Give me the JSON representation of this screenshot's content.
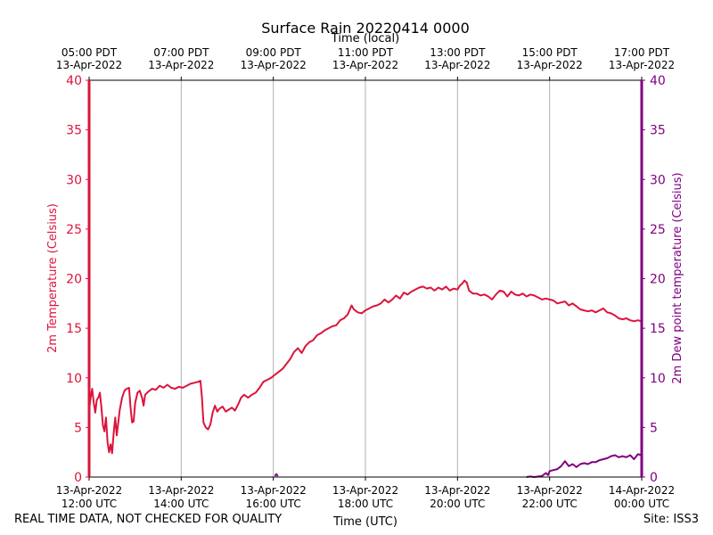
{
  "footer": {
    "left_note": "REAL TIME DATA, NOT CHECKED FOR QUALITY",
    "site": "Site: ISS3"
  },
  "colors": {
    "temperature": "#dc143c",
    "dewpoint": "#800080",
    "grid": "#b0b0b0",
    "axis": "#000000"
  },
  "chart_data": {
    "type": "line",
    "title": "Surface Rain 20220414 0000",
    "xlabel": "Time (UTC)",
    "x2label": "Time (local)",
    "ylabel": "2m Temperature (Celsius)",
    "y2label": "2m Dew point temperature (Celsius)",
    "xlim": [
      "2022-04-13T12:00Z",
      "2022-04-14T00:00Z"
    ],
    "ylim": [
      0,
      40
    ],
    "y2lim": [
      0,
      40
    ],
    "yticks": [
      0,
      5,
      10,
      15,
      20,
      25,
      30,
      35,
      40
    ],
    "grid": "vertical",
    "x_ticks_utc": [
      {
        "t": "2022-04-13T12:00Z",
        "line1": "13-Apr-2022",
        "line2": "12:00 UTC"
      },
      {
        "t": "2022-04-13T14:00Z",
        "line1": "13-Apr-2022",
        "line2": "14:00 UTC"
      },
      {
        "t": "2022-04-13T16:00Z",
        "line1": "13-Apr-2022",
        "line2": "16:00 UTC"
      },
      {
        "t": "2022-04-13T18:00Z",
        "line1": "13-Apr-2022",
        "line2": "18:00 UTC"
      },
      {
        "t": "2022-04-13T20:00Z",
        "line1": "13-Apr-2022",
        "line2": "20:00 UTC"
      },
      {
        "t": "2022-04-13T22:00Z",
        "line1": "13-Apr-2022",
        "line2": "22:00 UTC"
      },
      {
        "t": "2022-04-14T00:00Z",
        "line1": "14-Apr-2022",
        "line2": "00:00 UTC"
      }
    ],
    "x_ticks_local": [
      {
        "t": "2022-04-13T12:00Z",
        "line1": "05:00 PDT",
        "line2": "13-Apr-2022"
      },
      {
        "t": "2022-04-13T14:00Z",
        "line1": "07:00 PDT",
        "line2": "13-Apr-2022"
      },
      {
        "t": "2022-04-13T16:00Z",
        "line1": "09:00 PDT",
        "line2": "13-Apr-2022"
      },
      {
        "t": "2022-04-13T18:00Z",
        "line1": "11:00 PDT",
        "line2": "13-Apr-2022"
      },
      {
        "t": "2022-04-13T20:00Z",
        "line1": "13:00 PDT",
        "line2": "13-Apr-2022"
      },
      {
        "t": "2022-04-13T22:00Z",
        "line1": "15:00 PDT",
        "line2": "13-Apr-2022"
      },
      {
        "t": "2022-04-14T00:00Z",
        "line1": "17:00 PDT",
        "line2": "13-Apr-2022"
      }
    ],
    "series": [
      {
        "name": "2m Temperature",
        "axis": "left",
        "color": "#dc143c",
        "points": [
          [
            "2022-04-13T12:00Z",
            6.8
          ],
          [
            "2022-04-13T12:02Z",
            8.0
          ],
          [
            "2022-04-13T12:04Z",
            8.9
          ],
          [
            "2022-04-13T12:06Z",
            7.5
          ],
          [
            "2022-04-13T12:08Z",
            6.5
          ],
          [
            "2022-04-13T12:10Z",
            7.8
          ],
          [
            "2022-04-13T12:12Z",
            8.0
          ],
          [
            "2022-04-13T12:14Z",
            8.5
          ],
          [
            "2022-04-13T12:16Z",
            7.0
          ],
          [
            "2022-04-13T12:18Z",
            5.2
          ],
          [
            "2022-04-13T12:20Z",
            4.6
          ],
          [
            "2022-04-13T12:22Z",
            6.0
          ],
          [
            "2022-04-13T12:24Z",
            3.5
          ],
          [
            "2022-04-13T12:26Z",
            2.5
          ],
          [
            "2022-04-13T12:28Z",
            3.3
          ],
          [
            "2022-04-13T12:30Z",
            2.4
          ],
          [
            "2022-04-13T12:32Z",
            4.5
          ],
          [
            "2022-04-13T12:34Z",
            6.0
          ],
          [
            "2022-04-13T12:36Z",
            4.2
          ],
          [
            "2022-04-13T12:38Z",
            5.5
          ],
          [
            "2022-04-13T12:40Z",
            6.8
          ],
          [
            "2022-04-13T12:43Z",
            8.0
          ],
          [
            "2022-04-13T12:46Z",
            8.7
          ],
          [
            "2022-04-13T12:49Z",
            8.9
          ],
          [
            "2022-04-13T12:52Z",
            9.0
          ],
          [
            "2022-04-13T12:54Z",
            7.0
          ],
          [
            "2022-04-13T12:56Z",
            5.5
          ],
          [
            "2022-04-13T12:58Z",
            5.6
          ],
          [
            "2022-04-13T13:00Z",
            7.5
          ],
          [
            "2022-04-13T13:03Z",
            8.5
          ],
          [
            "2022-04-13T13:06Z",
            8.7
          ],
          [
            "2022-04-13T13:09Z",
            8.0
          ],
          [
            "2022-04-13T13:11Z",
            7.2
          ],
          [
            "2022-04-13T13:13Z",
            8.3
          ],
          [
            "2022-04-13T13:17Z",
            8.6
          ],
          [
            "2022-04-13T13:22Z",
            8.9
          ],
          [
            "2022-04-13T13:27Z",
            8.8
          ],
          [
            "2022-04-13T13:32Z",
            9.2
          ],
          [
            "2022-04-13T13:37Z",
            9.0
          ],
          [
            "2022-04-13T13:42Z",
            9.3
          ],
          [
            "2022-04-13T13:47Z",
            9.0
          ],
          [
            "2022-04-13T13:52Z",
            8.9
          ],
          [
            "2022-04-13T13:57Z",
            9.1
          ],
          [
            "2022-04-13T14:02Z",
            9.0
          ],
          [
            "2022-04-13T14:07Z",
            9.2
          ],
          [
            "2022-04-13T14:12Z",
            9.4
          ],
          [
            "2022-04-13T14:17Z",
            9.5
          ],
          [
            "2022-04-13T14:22Z",
            9.6
          ],
          [
            "2022-04-13T14:25Z",
            9.7
          ],
          [
            "2022-04-13T14:27Z",
            8.0
          ],
          [
            "2022-04-13T14:29Z",
            5.5
          ],
          [
            "2022-04-13T14:32Z",
            5.0
          ],
          [
            "2022-04-13T14:35Z",
            4.8
          ],
          [
            "2022-04-13T14:38Z",
            5.3
          ],
          [
            "2022-04-13T14:41Z",
            6.5
          ],
          [
            "2022-04-13T14:44Z",
            7.2
          ],
          [
            "2022-04-13T14:47Z",
            6.6
          ],
          [
            "2022-04-13T14:50Z",
            6.9
          ],
          [
            "2022-04-13T14:54Z",
            7.1
          ],
          [
            "2022-04-13T14:58Z",
            6.6
          ],
          [
            "2022-04-13T15:02Z",
            6.8
          ],
          [
            "2022-04-13T15:06Z",
            7.0
          ],
          [
            "2022-04-13T15:10Z",
            6.7
          ],
          [
            "2022-04-13T15:14Z",
            7.3
          ],
          [
            "2022-04-13T15:18Z",
            8.0
          ],
          [
            "2022-04-13T15:22Z",
            8.3
          ],
          [
            "2022-04-13T15:27Z",
            8.0
          ],
          [
            "2022-04-13T15:32Z",
            8.3
          ],
          [
            "2022-04-13T15:37Z",
            8.5
          ],
          [
            "2022-04-13T15:42Z",
            9.0
          ],
          [
            "2022-04-13T15:47Z",
            9.6
          ],
          [
            "2022-04-13T15:52Z",
            9.8
          ],
          [
            "2022-04-13T15:57Z",
            10.0
          ],
          [
            "2022-04-13T16:02Z",
            10.3
          ],
          [
            "2022-04-13T16:07Z",
            10.6
          ],
          [
            "2022-04-13T16:12Z",
            10.9
          ],
          [
            "2022-04-13T16:17Z",
            11.4
          ],
          [
            "2022-04-13T16:22Z",
            11.9
          ],
          [
            "2022-04-13T16:27Z",
            12.6
          ],
          [
            "2022-04-13T16:32Z",
            13.0
          ],
          [
            "2022-04-13T16:37Z",
            12.5
          ],
          [
            "2022-04-13T16:42Z",
            13.2
          ],
          [
            "2022-04-13T16:47Z",
            13.6
          ],
          [
            "2022-04-13T16:52Z",
            13.8
          ],
          [
            "2022-04-13T16:57Z",
            14.3
          ],
          [
            "2022-04-13T17:02Z",
            14.5
          ],
          [
            "2022-04-13T17:07Z",
            14.8
          ],
          [
            "2022-04-13T17:12Z",
            15.0
          ],
          [
            "2022-04-13T17:17Z",
            15.2
          ],
          [
            "2022-04-13T17:22Z",
            15.3
          ],
          [
            "2022-04-13T17:27Z",
            15.8
          ],
          [
            "2022-04-13T17:32Z",
            16.0
          ],
          [
            "2022-04-13T17:37Z",
            16.4
          ],
          [
            "2022-04-13T17:42Z",
            17.3
          ],
          [
            "2022-04-13T17:45Z",
            16.9
          ],
          [
            "2022-04-13T17:50Z",
            16.6
          ],
          [
            "2022-04-13T17:55Z",
            16.5
          ],
          [
            "2022-04-13T18:00Z",
            16.8
          ],
          [
            "2022-04-13T18:05Z",
            17.0
          ],
          [
            "2022-04-13T18:10Z",
            17.2
          ],
          [
            "2022-04-13T18:15Z",
            17.3
          ],
          [
            "2022-04-13T18:20Z",
            17.5
          ],
          [
            "2022-04-13T18:25Z",
            17.9
          ],
          [
            "2022-04-13T18:30Z",
            17.6
          ],
          [
            "2022-04-13T18:35Z",
            17.9
          ],
          [
            "2022-04-13T18:40Z",
            18.3
          ],
          [
            "2022-04-13T18:45Z",
            18.0
          ],
          [
            "2022-04-13T18:50Z",
            18.6
          ],
          [
            "2022-04-13T18:55Z",
            18.4
          ],
          [
            "2022-04-13T19:00Z",
            18.7
          ],
          [
            "2022-04-13T19:05Z",
            18.9
          ],
          [
            "2022-04-13T19:10Z",
            19.1
          ],
          [
            "2022-04-13T19:15Z",
            19.2
          ],
          [
            "2022-04-13T19:20Z",
            19.0
          ],
          [
            "2022-04-13T19:25Z",
            19.1
          ],
          [
            "2022-04-13T19:30Z",
            18.8
          ],
          [
            "2022-04-13T19:35Z",
            19.1
          ],
          [
            "2022-04-13T19:40Z",
            18.9
          ],
          [
            "2022-04-13T19:45Z",
            19.2
          ],
          [
            "2022-04-13T19:50Z",
            18.8
          ],
          [
            "2022-04-13T19:55Z",
            19.0
          ],
          [
            "2022-04-13T20:00Z",
            18.9
          ],
          [
            "2022-04-13T20:03Z",
            19.3
          ],
          [
            "2022-04-13T20:06Z",
            19.5
          ],
          [
            "2022-04-13T20:09Z",
            19.8
          ],
          [
            "2022-04-13T20:12Z",
            19.6
          ],
          [
            "2022-04-13T20:15Z",
            18.8
          ],
          [
            "2022-04-13T20:20Z",
            18.5
          ],
          [
            "2022-04-13T20:25Z",
            18.5
          ],
          [
            "2022-04-13T20:30Z",
            18.3
          ],
          [
            "2022-04-13T20:35Z",
            18.4
          ],
          [
            "2022-04-13T20:40Z",
            18.2
          ],
          [
            "2022-04-13T20:45Z",
            17.9
          ],
          [
            "2022-04-13T20:50Z",
            18.4
          ],
          [
            "2022-04-13T20:55Z",
            18.8
          ],
          [
            "2022-04-13T21:00Z",
            18.7
          ],
          [
            "2022-04-13T21:05Z",
            18.2
          ],
          [
            "2022-04-13T21:10Z",
            18.7
          ],
          [
            "2022-04-13T21:15Z",
            18.4
          ],
          [
            "2022-04-13T21:20Z",
            18.3
          ],
          [
            "2022-04-13T21:25Z",
            18.5
          ],
          [
            "2022-04-13T21:30Z",
            18.2
          ],
          [
            "2022-04-13T21:35Z",
            18.4
          ],
          [
            "2022-04-13T21:40Z",
            18.3
          ],
          [
            "2022-04-13T21:45Z",
            18.1
          ],
          [
            "2022-04-13T21:50Z",
            17.9
          ],
          [
            "2022-04-13T21:55Z",
            18.0
          ],
          [
            "2022-04-13T22:00Z",
            17.9
          ],
          [
            "2022-04-13T22:05Z",
            17.8
          ],
          [
            "2022-04-13T22:10Z",
            17.5
          ],
          [
            "2022-04-13T22:15Z",
            17.6
          ],
          [
            "2022-04-13T22:20Z",
            17.7
          ],
          [
            "2022-04-13T22:25Z",
            17.3
          ],
          [
            "2022-04-13T22:30Z",
            17.5
          ],
          [
            "2022-04-13T22:35Z",
            17.2
          ],
          [
            "2022-04-13T22:40Z",
            16.9
          ],
          [
            "2022-04-13T22:45Z",
            16.8
          ],
          [
            "2022-04-13T22:50Z",
            16.7
          ],
          [
            "2022-04-13T22:55Z",
            16.8
          ],
          [
            "2022-04-13T23:00Z",
            16.6
          ],
          [
            "2022-04-13T23:05Z",
            16.8
          ],
          [
            "2022-04-13T23:10Z",
            17.0
          ],
          [
            "2022-04-13T23:15Z",
            16.6
          ],
          [
            "2022-04-13T23:20Z",
            16.5
          ],
          [
            "2022-04-13T23:25Z",
            16.3
          ],
          [
            "2022-04-13T23:30Z",
            16.0
          ],
          [
            "2022-04-13T23:35Z",
            15.9
          ],
          [
            "2022-04-13T23:40Z",
            16.0
          ],
          [
            "2022-04-13T23:45Z",
            15.8
          ],
          [
            "2022-04-13T23:50Z",
            15.7
          ],
          [
            "2022-04-13T23:55Z",
            15.8
          ],
          [
            "2022-04-14T00:00Z",
            15.7
          ]
        ]
      },
      {
        "name": "2m Dew point temperature",
        "axis": "right",
        "color": "#800080",
        "points": [
          [
            "2022-04-13T16:02Z",
            0.1
          ],
          [
            "2022-04-13T16:04Z",
            0.3
          ],
          [
            "2022-04-13T16:06Z",
            0.1
          ],
          [
            "2022-04-13T21:30Z",
            0.0
          ],
          [
            "2022-04-13T21:35Z",
            0.05
          ],
          [
            "2022-04-13T21:40Z",
            0.0
          ],
          [
            "2022-04-13T21:50Z",
            0.1
          ],
          [
            "2022-04-13T21:55Z",
            0.4
          ],
          [
            "2022-04-13T21:58Z",
            0.2
          ],
          [
            "2022-04-13T22:00Z",
            0.6
          ],
          [
            "2022-04-13T22:05Z",
            0.7
          ],
          [
            "2022-04-13T22:10Z",
            0.8
          ],
          [
            "2022-04-13T22:15Z",
            1.1
          ],
          [
            "2022-04-13T22:20Z",
            1.6
          ],
          [
            "2022-04-13T22:25Z",
            1.1
          ],
          [
            "2022-04-13T22:30Z",
            1.3
          ],
          [
            "2022-04-13T22:35Z",
            1.0
          ],
          [
            "2022-04-13T22:40Z",
            1.3
          ],
          [
            "2022-04-13T22:45Z",
            1.4
          ],
          [
            "2022-04-13T22:50Z",
            1.3
          ],
          [
            "2022-04-13T22:55Z",
            1.5
          ],
          [
            "2022-04-13T23:00Z",
            1.5
          ],
          [
            "2022-04-13T23:05Z",
            1.7
          ],
          [
            "2022-04-13T23:10Z",
            1.8
          ],
          [
            "2022-04-13T23:15Z",
            1.9
          ],
          [
            "2022-04-13T23:20Z",
            2.1
          ],
          [
            "2022-04-13T23:25Z",
            2.2
          ],
          [
            "2022-04-13T23:30Z",
            2.0
          ],
          [
            "2022-04-13T23:35Z",
            2.1
          ],
          [
            "2022-04-13T23:40Z",
            2.0
          ],
          [
            "2022-04-13T23:45Z",
            2.2
          ],
          [
            "2022-04-13T23:50Z",
            1.8
          ],
          [
            "2022-04-13T23:55Z",
            2.3
          ],
          [
            "2022-04-14T00:00Z",
            2.2
          ]
        ]
      }
    ]
  }
}
